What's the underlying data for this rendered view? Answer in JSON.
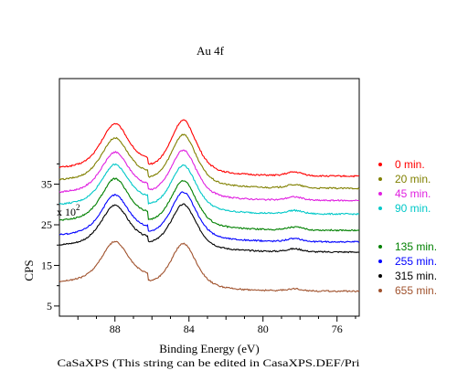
{
  "chart_data": {
    "type": "line",
    "title": "Au 4f",
    "xlabel": "Binding Energy (eV)",
    "ylabel": "CPS",
    "multiplier_label": "x 10",
    "multiplier_exp": "2",
    "footer": "CaSaXPS (This string can be edited in CasaXPS.DEF/Pri",
    "xlim": [
      91,
      74.8
    ],
    "x_reversed": true,
    "ylim": [
      2.5,
      61
    ],
    "x_ticks": [
      88,
      84,
      80,
      76
    ],
    "x_tick_labels": [
      "88",
      "84",
      "80",
      "76"
    ],
    "y_ticks": [
      5,
      15,
      25,
      35
    ],
    "y_tick_labels": [
      "5",
      "15",
      "25",
      "35"
    ],
    "legend_position": "right",
    "grid": false,
    "peaks_ev": [
      88.0,
      84.3,
      78.3
    ],
    "series": [
      {
        "name": "0 min.",
        "color": "#ff0000",
        "baseline": 36.0,
        "edge": 38.5,
        "p1": 11.0,
        "p2": 13.5,
        "p3": 0.9
      },
      {
        "name": "20 min.",
        "color": "#808000",
        "baseline": 33.0,
        "edge": 35.5,
        "p1": 10.5,
        "p2": 13.0,
        "p3": 0.8
      },
      {
        "name": "45 min.",
        "color": "#e020e0",
        "baseline": 30.0,
        "edge": 32.5,
        "p1": 10.0,
        "p2": 12.2,
        "p3": 0.8
      },
      {
        "name": "90 min.",
        "color": "#00c8c8",
        "baseline": 26.5,
        "edge": 29.5,
        "p1": 10.0,
        "p2": 11.8,
        "p3": 0.8
      },
      {
        "name": "135 min.",
        "color": "#008000",
        "baseline": 22.5,
        "edge": 25.5,
        "p1": 10.5,
        "p2": 12.0,
        "p3": 0.7
      },
      {
        "name": "255 min.",
        "color": "#0000ff",
        "baseline": 20.0,
        "edge": 22.0,
        "p1": 10.0,
        "p2": 12.0,
        "p3": 0.7
      },
      {
        "name": "315 min.",
        "color": "#000000",
        "baseline": 17.5,
        "edge": 19.5,
        "p1": 10.0,
        "p2": 11.5,
        "p3": 0.7
      },
      {
        "name": "655 min.",
        "color": "#a0522d",
        "baseline": 7.5,
        "edge": 10.5,
        "p1": 10.0,
        "p2": 11.5,
        "p3": 0.5
      }
    ]
  }
}
